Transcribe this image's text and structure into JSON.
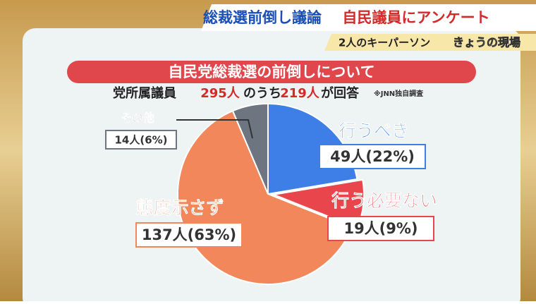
{
  "header": {
    "headline_a": "総裁選前倒し議論",
    "headline_b": "自民議員にアンケート",
    "subline": "2人のキーパーソン",
    "logo": "きょうの現場"
  },
  "chart_data": {
    "type": "pie",
    "title": "自民党総裁選の前倒しについて",
    "subtitle": [
      "党所属議員",
      "295人",
      "のうち",
      "219人",
      "が回答"
    ],
    "note": "※JNN独自調査",
    "categories": [
      "行うべき",
      "行う必要ない",
      "態度示さず",
      "その他"
    ],
    "values": [
      49,
      19,
      137,
      14
    ],
    "value_labels": [
      "49人(22%)",
      "19人(9%)",
      "137人(63%)",
      "14人(6%)"
    ],
    "colors": [
      "#3d7fe6",
      "#e8464c",
      "#f2875c",
      "#6c7580"
    ]
  }
}
